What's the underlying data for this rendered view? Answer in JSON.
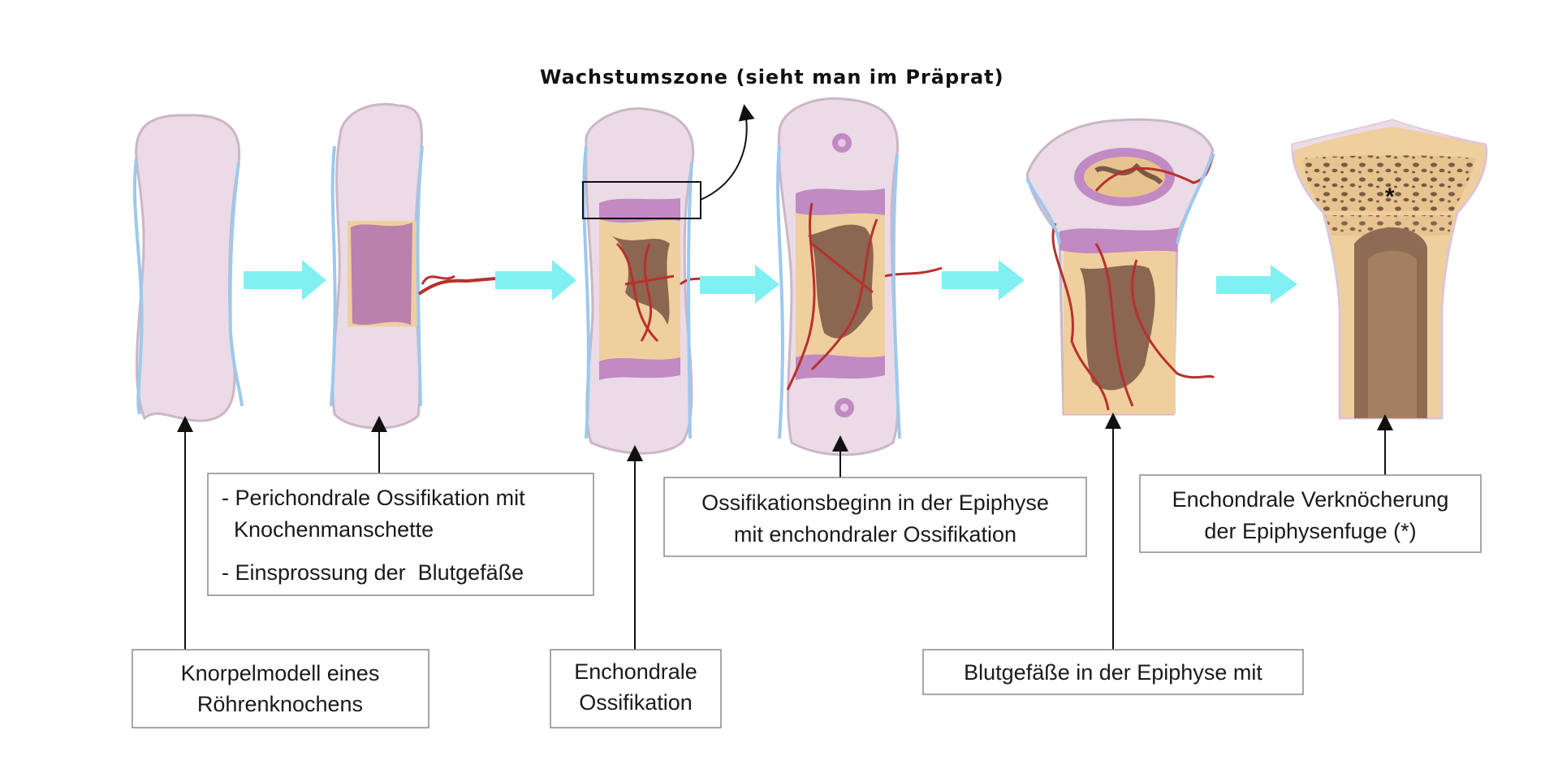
{
  "header": {
    "annotation": "Wachstumszone (sieht man im Präprat)"
  },
  "labels": {
    "stage1": [
      "Knorpelmodell eines",
      "Röhrenknochens"
    ],
    "stage2": [
      "- Perichondrale Ossifikation mit",
      "  Knochenmanschette",
      "- Einsprossung der  Blutgefäße"
    ],
    "stage3": [
      "Enchondrale",
      "Ossifikation"
    ],
    "stage4": [
      "Ossifikationsbeginn in der Epiphyse",
      "mit enchondraler Ossifikation"
    ],
    "stage5": [
      "Blutgefäße in der Epiphyse mit"
    ],
    "stage6": [
      "Enchondrale Verknöcherung",
      "der Epiphysenfuge (*)"
    ]
  },
  "marker": "*",
  "colors": {
    "cartilage": "#ece0e8",
    "cartilage_edge": "#c9b3c2",
    "periosteum": "#9cc9ee",
    "bone": "#efcf9e",
    "marrow": "#a98566",
    "purple": "#c18ac3",
    "vessel": "#b8302d",
    "flow_arrow": "#80f0f2"
  }
}
